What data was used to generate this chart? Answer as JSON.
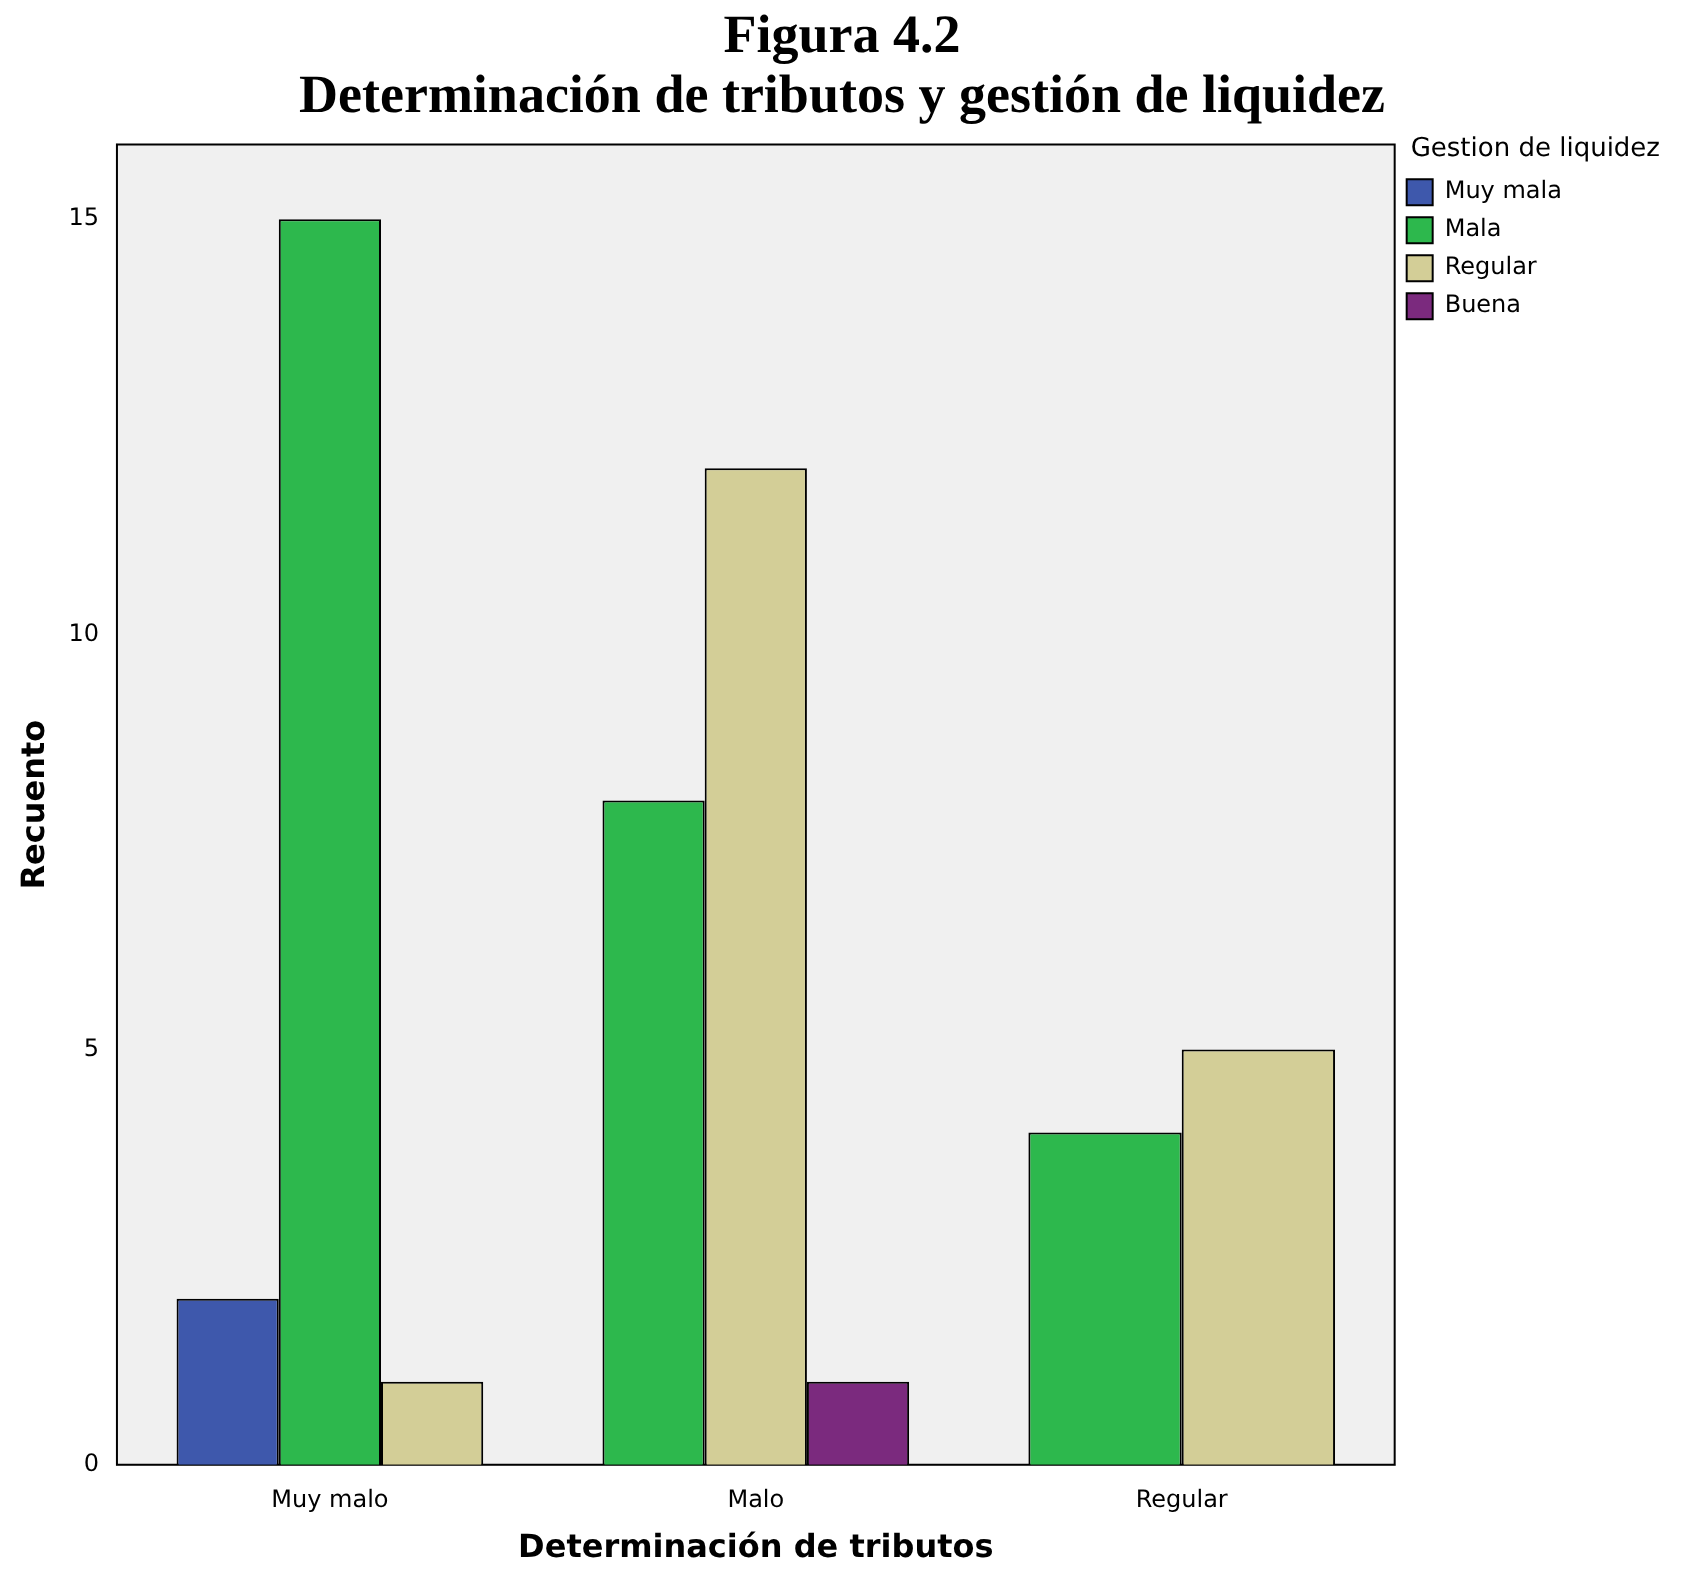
{
  "chart_data": {
    "type": "bar",
    "title": "Figura 4.2",
    "subtitle": "Determinación de tributos y gestión de liquidez",
    "xlabel": "Determinación de tributos",
    "ylabel": "Recuento",
    "legend_title": "Gestion de liquidez",
    "categories": [
      "Muy malo",
      "Malo",
      "Regular"
    ],
    "series": [
      {
        "name": "Muy mala",
        "color": "#3e58ac",
        "values": [
          2,
          null,
          null
        ]
      },
      {
        "name": "Mala",
        "color": "#2db84d",
        "values": [
          15,
          8,
          4
        ]
      },
      {
        "name": "Regular",
        "color": "#d3ce97",
        "values": [
          1,
          12,
          5
        ]
      },
      {
        "name": "Buena",
        "color": "#7b2a7e",
        "values": [
          null,
          1,
          null
        ]
      }
    ],
    "ylim": [
      0,
      15.9
    ],
    "yticks": [
      0,
      5,
      10,
      15
    ],
    "grid": false,
    "legend": "top right"
  }
}
